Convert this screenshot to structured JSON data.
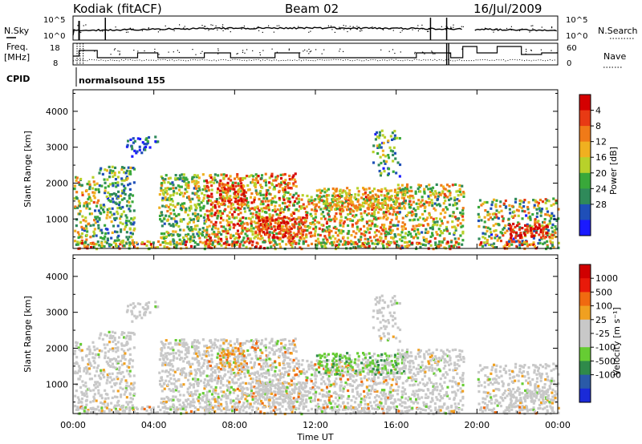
{
  "header": {
    "station": "Kodiak (fitACF)",
    "beam": "Beam 02",
    "date": "16/Jul/2009"
  },
  "top_strip": {
    "left_labels": {
      "nsky": "N.Sky",
      "freq": "Freq.",
      "freq_unit": "[MHz]",
      "cpid": "CPID"
    },
    "right_labels": {
      "nsearch": "N.Search",
      "nave": "Nave"
    },
    "noise_ticks": [
      "10^5",
      "10^0"
    ],
    "freq_ticks": [
      "18",
      "8"
    ],
    "nave_ticks": [
      "60",
      "0"
    ],
    "cpid_label": "normalsound 155"
  },
  "chart_data": [
    {
      "type": "heatmap",
      "name": "Power",
      "ylabel": "Slant Range [km]",
      "xlabel": "Time UT",
      "xlim": [
        0,
        24
      ],
      "ylim": [
        180,
        4600
      ],
      "yticks": [
        1000,
        2000,
        3000,
        4000
      ],
      "xtick_labels": [
        "00:00",
        "04:00",
        "08:00",
        "12:00",
        "16:00",
        "20:00",
        "00:00"
      ],
      "colorbar": {
        "label": "Power [dB]",
        "ticks": [
          "4",
          "8",
          "12",
          "16",
          "20",
          "24",
          "28"
        ],
        "colors": [
          "#1a1aff",
          "#1f4fb8",
          "#2f8a5a",
          "#39a83a",
          "#b8d12a",
          "#f0b020",
          "#f07a18",
          "#e83a14",
          "#d40000"
        ]
      }
    },
    {
      "type": "heatmap",
      "name": "Velocity",
      "ylabel": "Slant Range [km]",
      "xlabel": "Time UT",
      "xlim": [
        0,
        24
      ],
      "ylim": [
        180,
        4600
      ],
      "yticks": [
        1000,
        2000,
        3000,
        4000
      ],
      "xtick_labels": [
        "00:00",
        "04:00",
        "08:00",
        "12:00",
        "16:00",
        "20:00",
        "00:00"
      ],
      "colorbar": {
        "label": "Velocity [m s⁻¹]",
        "ticks": [
          "1000",
          "500",
          "100",
          "25",
          "-25",
          "-100",
          "-500",
          "-1000"
        ],
        "colors": [
          "#1a2ad8",
          "#2a5aa8",
          "#2f8a4a",
          "#66cc33",
          "#c8c8c8",
          "#c8c8c8",
          "#f0a020",
          "#f06a10",
          "#e81a0a",
          "#d00000"
        ]
      }
    }
  ],
  "xaxis_title": "Time UT"
}
